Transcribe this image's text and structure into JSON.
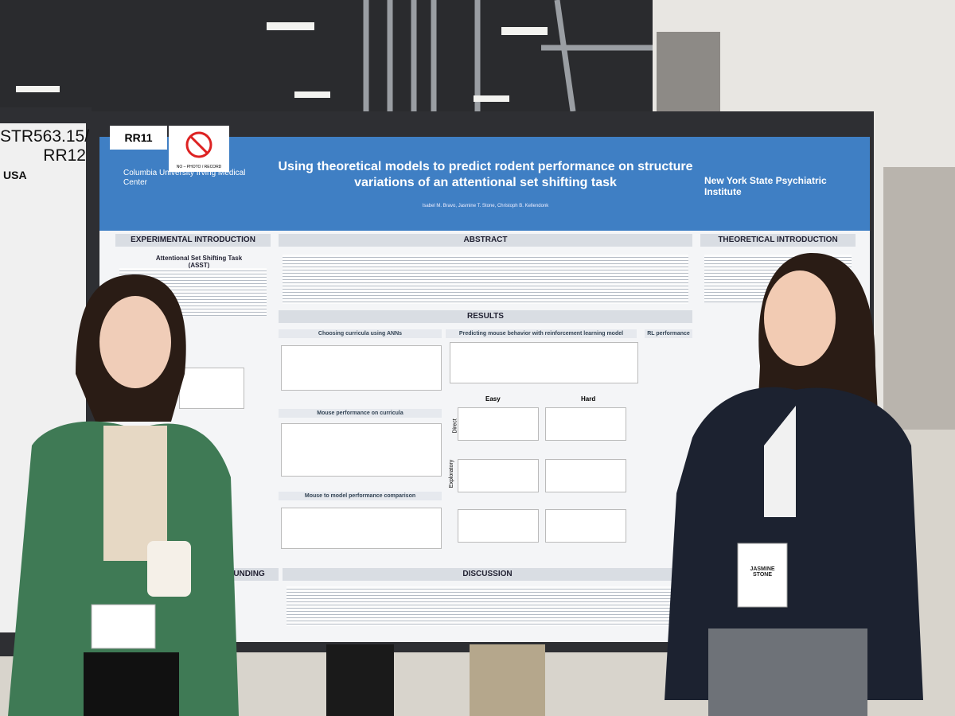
{
  "left_poster": {
    "code": "STR563.15/ RR12",
    "country": "USA"
  },
  "poster": {
    "board_label": "RR11",
    "no_photo": "NO – PHOTO / RECORD",
    "left_logo": "Columbia University Irving Medical Center",
    "title": "Using theoretical models to predict rodent performance on structure variations of an attentional set shifting task",
    "right_logo": "New York State Psychiatric Institute",
    "authors": "Isabel M. Bravo, Jasmine T. Stone, Christoph B. Kellendonk",
    "sections": {
      "experimental_introduction": "EXPERIMENTAL INTRODUCTION",
      "asst": "Attentional Set Shifting Task (ASST)",
      "abstract": "ABSTRACT",
      "theoretical_introduction": "THEORETICAL INTRODUCTION",
      "results": "RESULTS",
      "choosing_curricula": "Choosing curricula using ANNs",
      "predicting": "Predicting mouse behavior with reinforcement learning model",
      "rl_performance": "RL performance",
      "mouse_performance": "Mouse performance on curricula",
      "comparison": "Mouse to model performance comparison",
      "easy": "Easy",
      "hard": "Hard",
      "direct": "Direct",
      "exploratory": "Exploratory",
      "funding": "FUNDING",
      "discussion": "DISCUSSION"
    }
  },
  "badge": "JASMINE STONE"
}
